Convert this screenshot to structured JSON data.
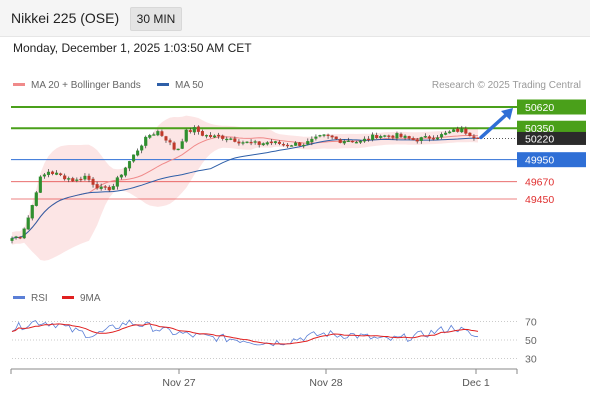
{
  "header": {
    "instrument": "Nikkei 225 (OSE)",
    "timeframe": "30 MIN"
  },
  "datetime": "Monday, December 1, 2025 1:03:50 AM CET",
  "legend": {
    "bb": {
      "label": "MA 20 + Bollinger Bands",
      "color": "#f08a8a"
    },
    "ma50": {
      "label": "MA 50",
      "color": "#2e5fa8"
    }
  },
  "credit": "Research © 2025 Trading Central",
  "rsi_legend": {
    "rsi": {
      "label": "RSI",
      "color": "#5b7fd6"
    },
    "ma9": {
      "label": "9MA",
      "color": "#e02020"
    }
  },
  "levels": [
    {
      "value": 50620,
      "label": "50620",
      "role": "resistance-target",
      "color": "#4aa01a"
    },
    {
      "value": 50350,
      "label": "50350",
      "role": "pivot",
      "color": "#4aa01a"
    },
    {
      "value": 50220,
      "label": "50220",
      "role": "last-price",
      "color": "#222222"
    },
    {
      "value": 49950,
      "label": "49950",
      "role": "support",
      "color": "#2f6fd6"
    },
    {
      "value": 49670,
      "label": "49670",
      "role": "support",
      "color": "#e03030"
    },
    {
      "value": 49450,
      "label": "49450",
      "role": "support",
      "color": "#e03030"
    }
  ],
  "rsi_axis": [
    "70",
    "50",
    "30"
  ],
  "x_axis": [
    "Nov 27",
    "Nov 28",
    "Dec 1"
  ],
  "chart_data": {
    "type": "line",
    "title": "Nikkei 225 (OSE)",
    "price_series": {
      "name": "Nikkei 225 (OSE) 30 MIN",
      "approx_close_path": [
        48950,
        48990,
        49280,
        49700,
        49800,
        49760,
        49720,
        49680,
        49740,
        49640,
        49560,
        49600,
        49780,
        49950,
        50120,
        50260,
        50310,
        50200,
        50050,
        50300,
        50340,
        50260,
        50240,
        50240,
        50220,
        50180,
        50160,
        50150,
        50170,
        50160,
        50140,
        50150,
        50150,
        50200,
        50250,
        50230,
        50190,
        50200,
        50170,
        50220,
        50260,
        50250,
        50260,
        50230,
        50200,
        50220,
        50240,
        50260,
        50300,
        50330,
        50290,
        50220
      ]
    },
    "levels": [
      50620,
      50350,
      50220,
      49950,
      49670,
      49450
    ],
    "x_labels": [
      "Nov 27",
      "Nov 28",
      "Dec 1"
    ],
    "rsi": {
      "name": "RSI",
      "yticks": [
        70,
        50,
        30
      ],
      "approx_path": [
        62,
        66,
        70,
        69,
        67,
        61,
        58,
        55,
        59,
        65,
        69,
        67,
        64,
        60,
        58,
        56,
        54,
        53,
        52,
        51,
        50,
        48,
        47,
        48,
        50,
        53,
        55,
        57,
        55,
        56,
        54,
        52,
        50,
        51,
        53,
        55,
        58,
        61,
        64,
        58,
        52
      ]
    }
  }
}
